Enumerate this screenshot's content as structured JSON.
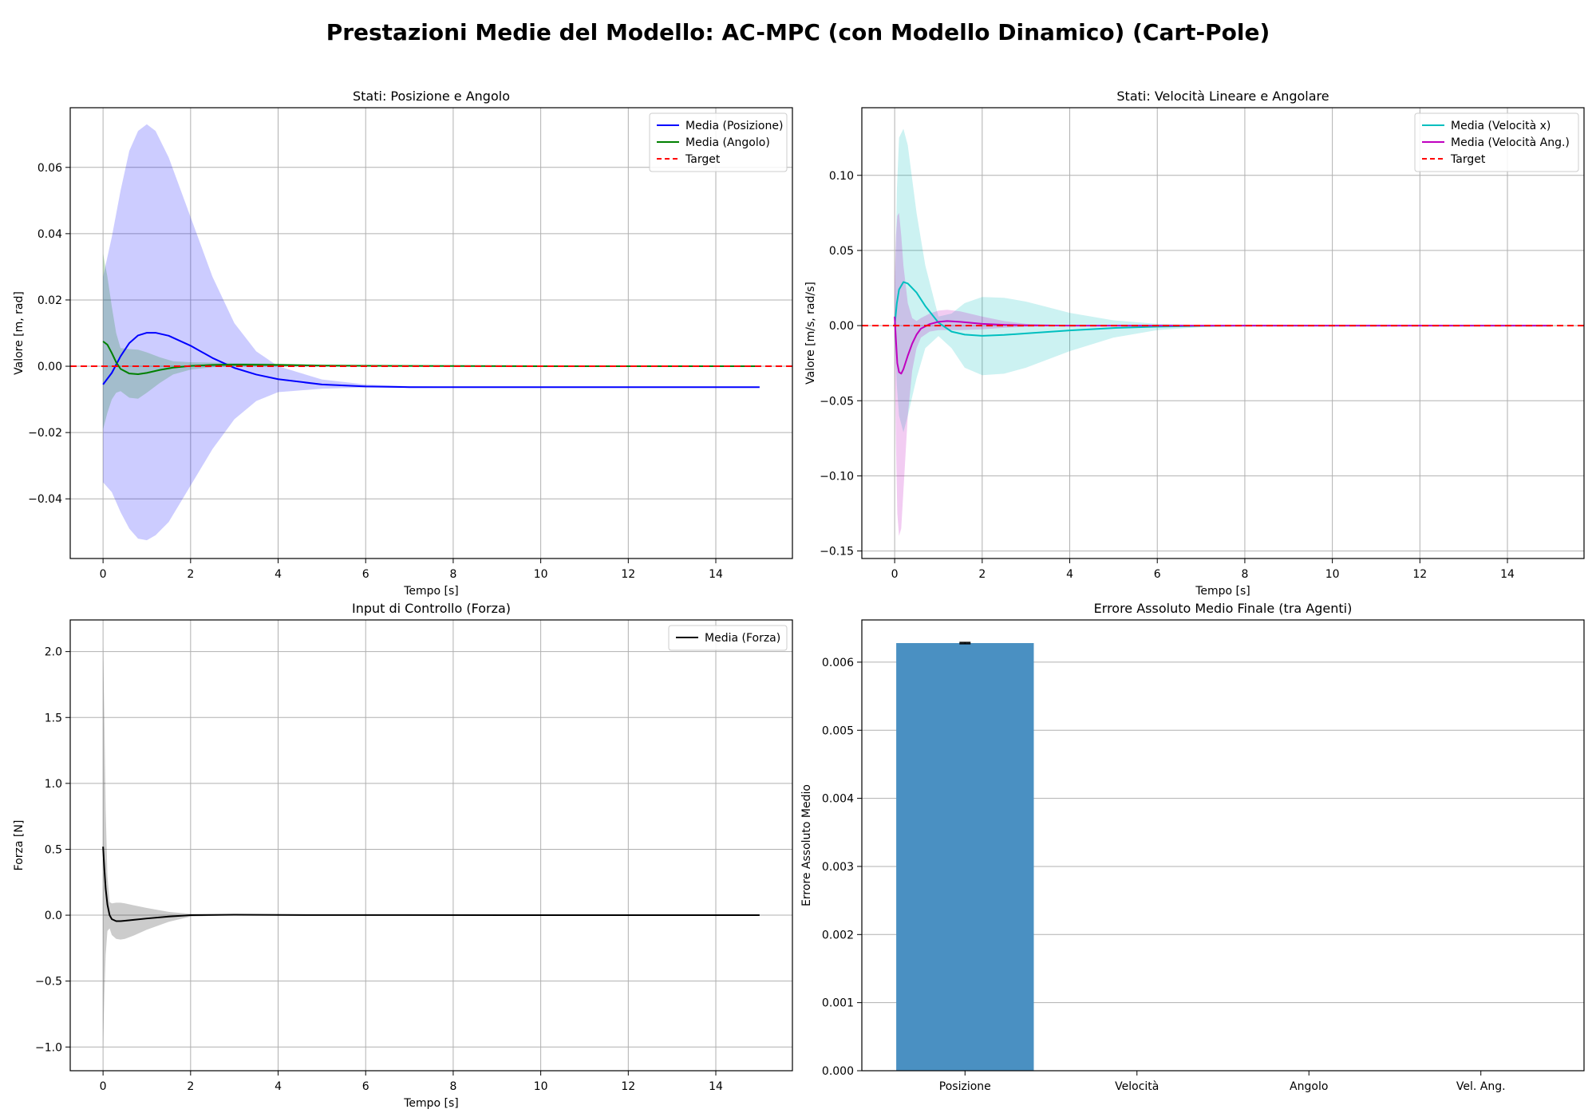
{
  "figure": {
    "title": "Prestazioni Medie del Modello: AC-MPC (con Modello Dinamico) (Cart-Pole)"
  },
  "colors": {
    "posizione": "#0000ff",
    "angolo": "#008000",
    "velocita_x": "#00bfbf",
    "velocita_ang": "#bf00bf",
    "target": "#ff0000",
    "forza": "#000000",
    "bar": "#4a90c2",
    "grid": "#b0b0b0"
  },
  "chart_data": [
    {
      "id": "pos_ang",
      "type": "line",
      "title": "Stati: Posizione e Angolo",
      "xlabel": "Tempo [s]",
      "ylabel": "Valore [m, rad]",
      "xlim": [
        -0.75,
        15.75
      ],
      "ylim": [
        -0.058,
        0.078
      ],
      "xticks": [
        0,
        2,
        4,
        6,
        8,
        10,
        12,
        14
      ],
      "yticks": [
        -0.04,
        -0.02,
        0.0,
        0.02,
        0.04,
        0.06
      ],
      "ytick_labels": [
        "−0.04",
        "−0.02",
        "0.00",
        "0.02",
        "0.04",
        "0.06"
      ],
      "grid": true,
      "legend_position": "top-right",
      "series": [
        {
          "name": "Media (Posizione)",
          "color": "#0000ff",
          "style": "solid",
          "x": [
            0,
            0.2,
            0.4,
            0.6,
            0.8,
            1.0,
            1.2,
            1.5,
            2.0,
            2.5,
            3.0,
            3.5,
            4.0,
            5.0,
            6.0,
            7.0,
            8.0,
            10.0,
            12.0,
            15.0
          ],
          "y": [
            -0.0055,
            -0.002,
            0.003,
            0.007,
            0.0093,
            0.0101,
            0.0101,
            0.0092,
            0.0062,
            0.0025,
            -0.0005,
            -0.0025,
            -0.0039,
            -0.0055,
            -0.0061,
            -0.0063,
            -0.0063,
            -0.0063,
            -0.0063,
            -0.0063
          ],
          "band": {
            "upper": [
              0.027,
              0.039,
              0.053,
              0.065,
              0.071,
              0.073,
              0.071,
              0.063,
              0.045,
              0.027,
              0.013,
              0.0045,
              0.0,
              -0.004,
              -0.0055,
              -0.006,
              -0.0062,
              -0.0063,
              -0.0063,
              -0.0063
            ],
            "lower": [
              -0.035,
              -0.038,
              -0.044,
              -0.049,
              -0.052,
              -0.0525,
              -0.051,
              -0.047,
              -0.036,
              -0.025,
              -0.016,
              -0.0105,
              -0.0078,
              -0.0068,
              -0.0064,
              -0.0063,
              -0.0063,
              -0.0063,
              -0.0063,
              -0.0063
            ],
            "color": "#0000ff",
            "opacity": 0.2
          }
        },
        {
          "name": "Media (Angolo)",
          "color": "#008000",
          "style": "solid",
          "x": [
            0,
            0.1,
            0.2,
            0.3,
            0.4,
            0.6,
            0.8,
            1.0,
            1.3,
            1.6,
            2.0,
            2.5,
            3.0,
            4.0,
            5.0,
            7.0,
            10.0,
            15.0
          ],
          "y": [
            0.0075,
            0.0065,
            0.004,
            0.0012,
            -0.0008,
            -0.0022,
            -0.0024,
            -0.002,
            -0.0011,
            -0.0004,
            0.0001,
            0.0004,
            0.0005,
            0.0004,
            0.0002,
            0.0001,
            0.0,
            0.0
          ],
          "band": {
            "upper": [
              0.034,
              0.027,
              0.018,
              0.01,
              0.0055,
              0.0052,
              0.005,
              0.0042,
              0.0027,
              0.0015,
              0.0012,
              0.0011,
              0.001,
              0.0008,
              0.0005,
              0.0002,
              0.0001,
              0.0001
            ],
            "lower": [
              -0.019,
              -0.014,
              -0.01,
              -0.008,
              -0.0075,
              -0.0095,
              -0.0098,
              -0.008,
              -0.005,
              -0.0025,
              -0.001,
              -0.0003,
              0.0,
              0.0,
              0.0,
              0.0,
              -0.0001,
              -0.0001
            ],
            "color": "#008000",
            "opacity": 0.2
          }
        }
      ],
      "reference_lines": [
        {
          "name": "Target",
          "y": 0.0,
          "color": "#ff0000",
          "style": "dashed"
        }
      ],
      "legend": [
        {
          "label": "Media (Posizione)",
          "color": "#0000ff",
          "style": "solid"
        },
        {
          "label": "Media (Angolo)",
          "color": "#008000",
          "style": "solid"
        },
        {
          "label": "Target",
          "color": "#ff0000",
          "style": "dashed"
        }
      ]
    },
    {
      "id": "vel",
      "type": "line",
      "title": "Stati: Velocità Lineare e Angolare",
      "xlabel": "Tempo [s]",
      "ylabel": "Valore [m/s, rad/s]",
      "xlim": [
        -0.75,
        15.75
      ],
      "ylim": [
        -0.155,
        0.145
      ],
      "xticks": [
        0,
        2,
        4,
        6,
        8,
        10,
        12,
        14
      ],
      "yticks": [
        -0.15,
        -0.1,
        -0.05,
        0.0,
        0.05,
        0.1
      ],
      "ytick_labels": [
        "−0.15",
        "−0.10",
        "−0.05",
        "0.00",
        "0.05",
        "0.10"
      ],
      "grid": true,
      "legend_position": "top-right",
      "series": [
        {
          "name": "Media (Velocità x)",
          "color": "#00bfbf",
          "style": "solid",
          "x": [
            0,
            0.05,
            0.1,
            0.2,
            0.3,
            0.5,
            0.7,
            1.0,
            1.3,
            1.6,
            2.0,
            2.5,
            3.0,
            4.0,
            5.0,
            6.0,
            7.0,
            8.0,
            10.0,
            15.0
          ],
          "y": [
            0.0,
            0.015,
            0.024,
            0.029,
            0.028,
            0.022,
            0.013,
            0.002,
            -0.004,
            -0.006,
            -0.0068,
            -0.0062,
            -0.0052,
            -0.0032,
            -0.0016,
            -0.0007,
            -0.0002,
            0.0,
            0.0,
            0.0
          ],
          "band": {
            "upper": [
              0.01,
              0.09,
              0.125,
              0.131,
              0.12,
              0.075,
              0.04,
              0.006,
              0.008,
              0.015,
              0.019,
              0.0185,
              0.016,
              0.0085,
              0.0035,
              0.0012,
              0.0004,
              0.0001,
              0.0,
              0.0
            ],
            "lower": [
              -0.01,
              -0.04,
              -0.06,
              -0.071,
              -0.06,
              -0.035,
              -0.015,
              -0.007,
              -0.015,
              -0.028,
              -0.033,
              -0.032,
              -0.028,
              -0.017,
              -0.008,
              -0.003,
              -0.001,
              -0.0002,
              0.0,
              0.0
            ],
            "color": "#00bfbf",
            "opacity": 0.2
          }
        },
        {
          "name": "Media (Velocità Ang.)",
          "color": "#bf00bf",
          "style": "solid",
          "x": [
            0,
            0.03,
            0.06,
            0.1,
            0.15,
            0.2,
            0.3,
            0.4,
            0.5,
            0.6,
            0.8,
            1.0,
            1.2,
            1.5,
            2.0,
            2.5,
            3.0,
            4.0,
            5.0,
            15.0
          ],
          "y": [
            0.006,
            -0.01,
            -0.025,
            -0.031,
            -0.032,
            -0.029,
            -0.02,
            -0.012,
            -0.006,
            -0.002,
            0.001,
            0.0025,
            0.003,
            0.0025,
            0.0012,
            0.0005,
            0.0002,
            0.0,
            0.0,
            0.0
          ],
          "band": {
            "upper": [
              0.03,
              0.06,
              0.073,
              0.075,
              0.06,
              0.04,
              0.015,
              0.005,
              0.003,
              0.005,
              0.008,
              0.01,
              0.0105,
              0.0095,
              0.006,
              0.003,
              0.0012,
              0.0003,
              0.0001,
              0.0
            ],
            "lower": [
              -0.02,
              -0.08,
              -0.125,
              -0.14,
              -0.135,
              -0.11,
              -0.06,
              -0.03,
              -0.015,
              -0.008,
              -0.004,
              -0.003,
              -0.003,
              -0.003,
              -0.0025,
              -0.0015,
              -0.0008,
              -0.0002,
              0.0,
              0.0
            ],
            "color": "#bf00bf",
            "opacity": 0.2
          }
        }
      ],
      "reference_lines": [
        {
          "name": "Target",
          "y": 0.0,
          "color": "#ff0000",
          "style": "dashed"
        }
      ],
      "legend": [
        {
          "label": "Media (Velocità x)",
          "color": "#00bfbf",
          "style": "solid"
        },
        {
          "label": "Media (Velocità Ang.)",
          "color": "#bf00bf",
          "style": "solid"
        },
        {
          "label": "Target",
          "color": "#ff0000",
          "style": "dashed"
        }
      ]
    },
    {
      "id": "forza",
      "type": "line",
      "title": "Input di Controllo (Forza)",
      "xlabel": "Tempo [s]",
      "ylabel": "Forza [N]",
      "xlim": [
        -0.75,
        15.75
      ],
      "ylim": [
        -1.18,
        2.24
      ],
      "xticks": [
        0,
        2,
        4,
        6,
        8,
        10,
        12,
        14
      ],
      "yticks": [
        -1.0,
        -0.5,
        0.0,
        0.5,
        1.0,
        1.5,
        2.0
      ],
      "ytick_labels": [
        "−1.0",
        "−0.5",
        "0.0",
        "0.5",
        "1.0",
        "1.5",
        "2.0"
      ],
      "grid": true,
      "legend_position": "top-right",
      "series": [
        {
          "name": "Media (Forza)",
          "color": "#000000",
          "style": "solid",
          "x": [
            0,
            0.03,
            0.06,
            0.1,
            0.15,
            0.2,
            0.3,
            0.4,
            0.5,
            0.7,
            1.0,
            1.5,
            2.0,
            3.0,
            5.0,
            15.0
          ],
          "y": [
            0.52,
            0.35,
            0.2,
            0.08,
            0.0,
            -0.03,
            -0.045,
            -0.045,
            -0.042,
            -0.035,
            -0.025,
            -0.01,
            0.0,
            0.003,
            0.001,
            0.0
          ],
          "band": {
            "upper": [
              2.05,
              1.5,
              0.8,
              0.3,
              0.1,
              0.09,
              0.095,
              0.095,
              0.09,
              0.075,
              0.055,
              0.025,
              0.01,
              0.006,
              0.002,
              0.0
            ],
            "lower": [
              -1.0,
              -0.6,
              -0.3,
              -0.12,
              -0.1,
              -0.15,
              -0.18,
              -0.185,
              -0.18,
              -0.155,
              -0.11,
              -0.05,
              -0.01,
              0.0,
              0.0,
              0.0
            ],
            "color": "#000000",
            "opacity": 0.2
          }
        }
      ],
      "reference_lines": [],
      "legend": [
        {
          "label": "Media (Forza)",
          "color": "#000000",
          "style": "solid"
        }
      ]
    },
    {
      "id": "errore",
      "type": "bar",
      "title": "Errore Assoluto Medio Finale (tra Agenti)",
      "xlabel": "",
      "ylabel": "Errore Assoluto Medio",
      "categories": [
        "Posizione",
        "Velocità",
        "Angolo",
        "Vel. Ang."
      ],
      "values": [
        0.00628,
        0.0,
        0.0,
        0.0
      ],
      "errors": [
        1e-05,
        0.0,
        0.0,
        0.0
      ],
      "ylim": [
        0.0,
        0.00662
      ],
      "yticks": [
        0.0,
        0.001,
        0.002,
        0.003,
        0.004,
        0.005,
        0.006
      ],
      "ytick_labels": [
        "0.000",
        "0.001",
        "0.002",
        "0.003",
        "0.004",
        "0.005",
        "0.006"
      ],
      "grid": true,
      "grid_axis": "y",
      "bar_color": "#4a90c2"
    }
  ]
}
